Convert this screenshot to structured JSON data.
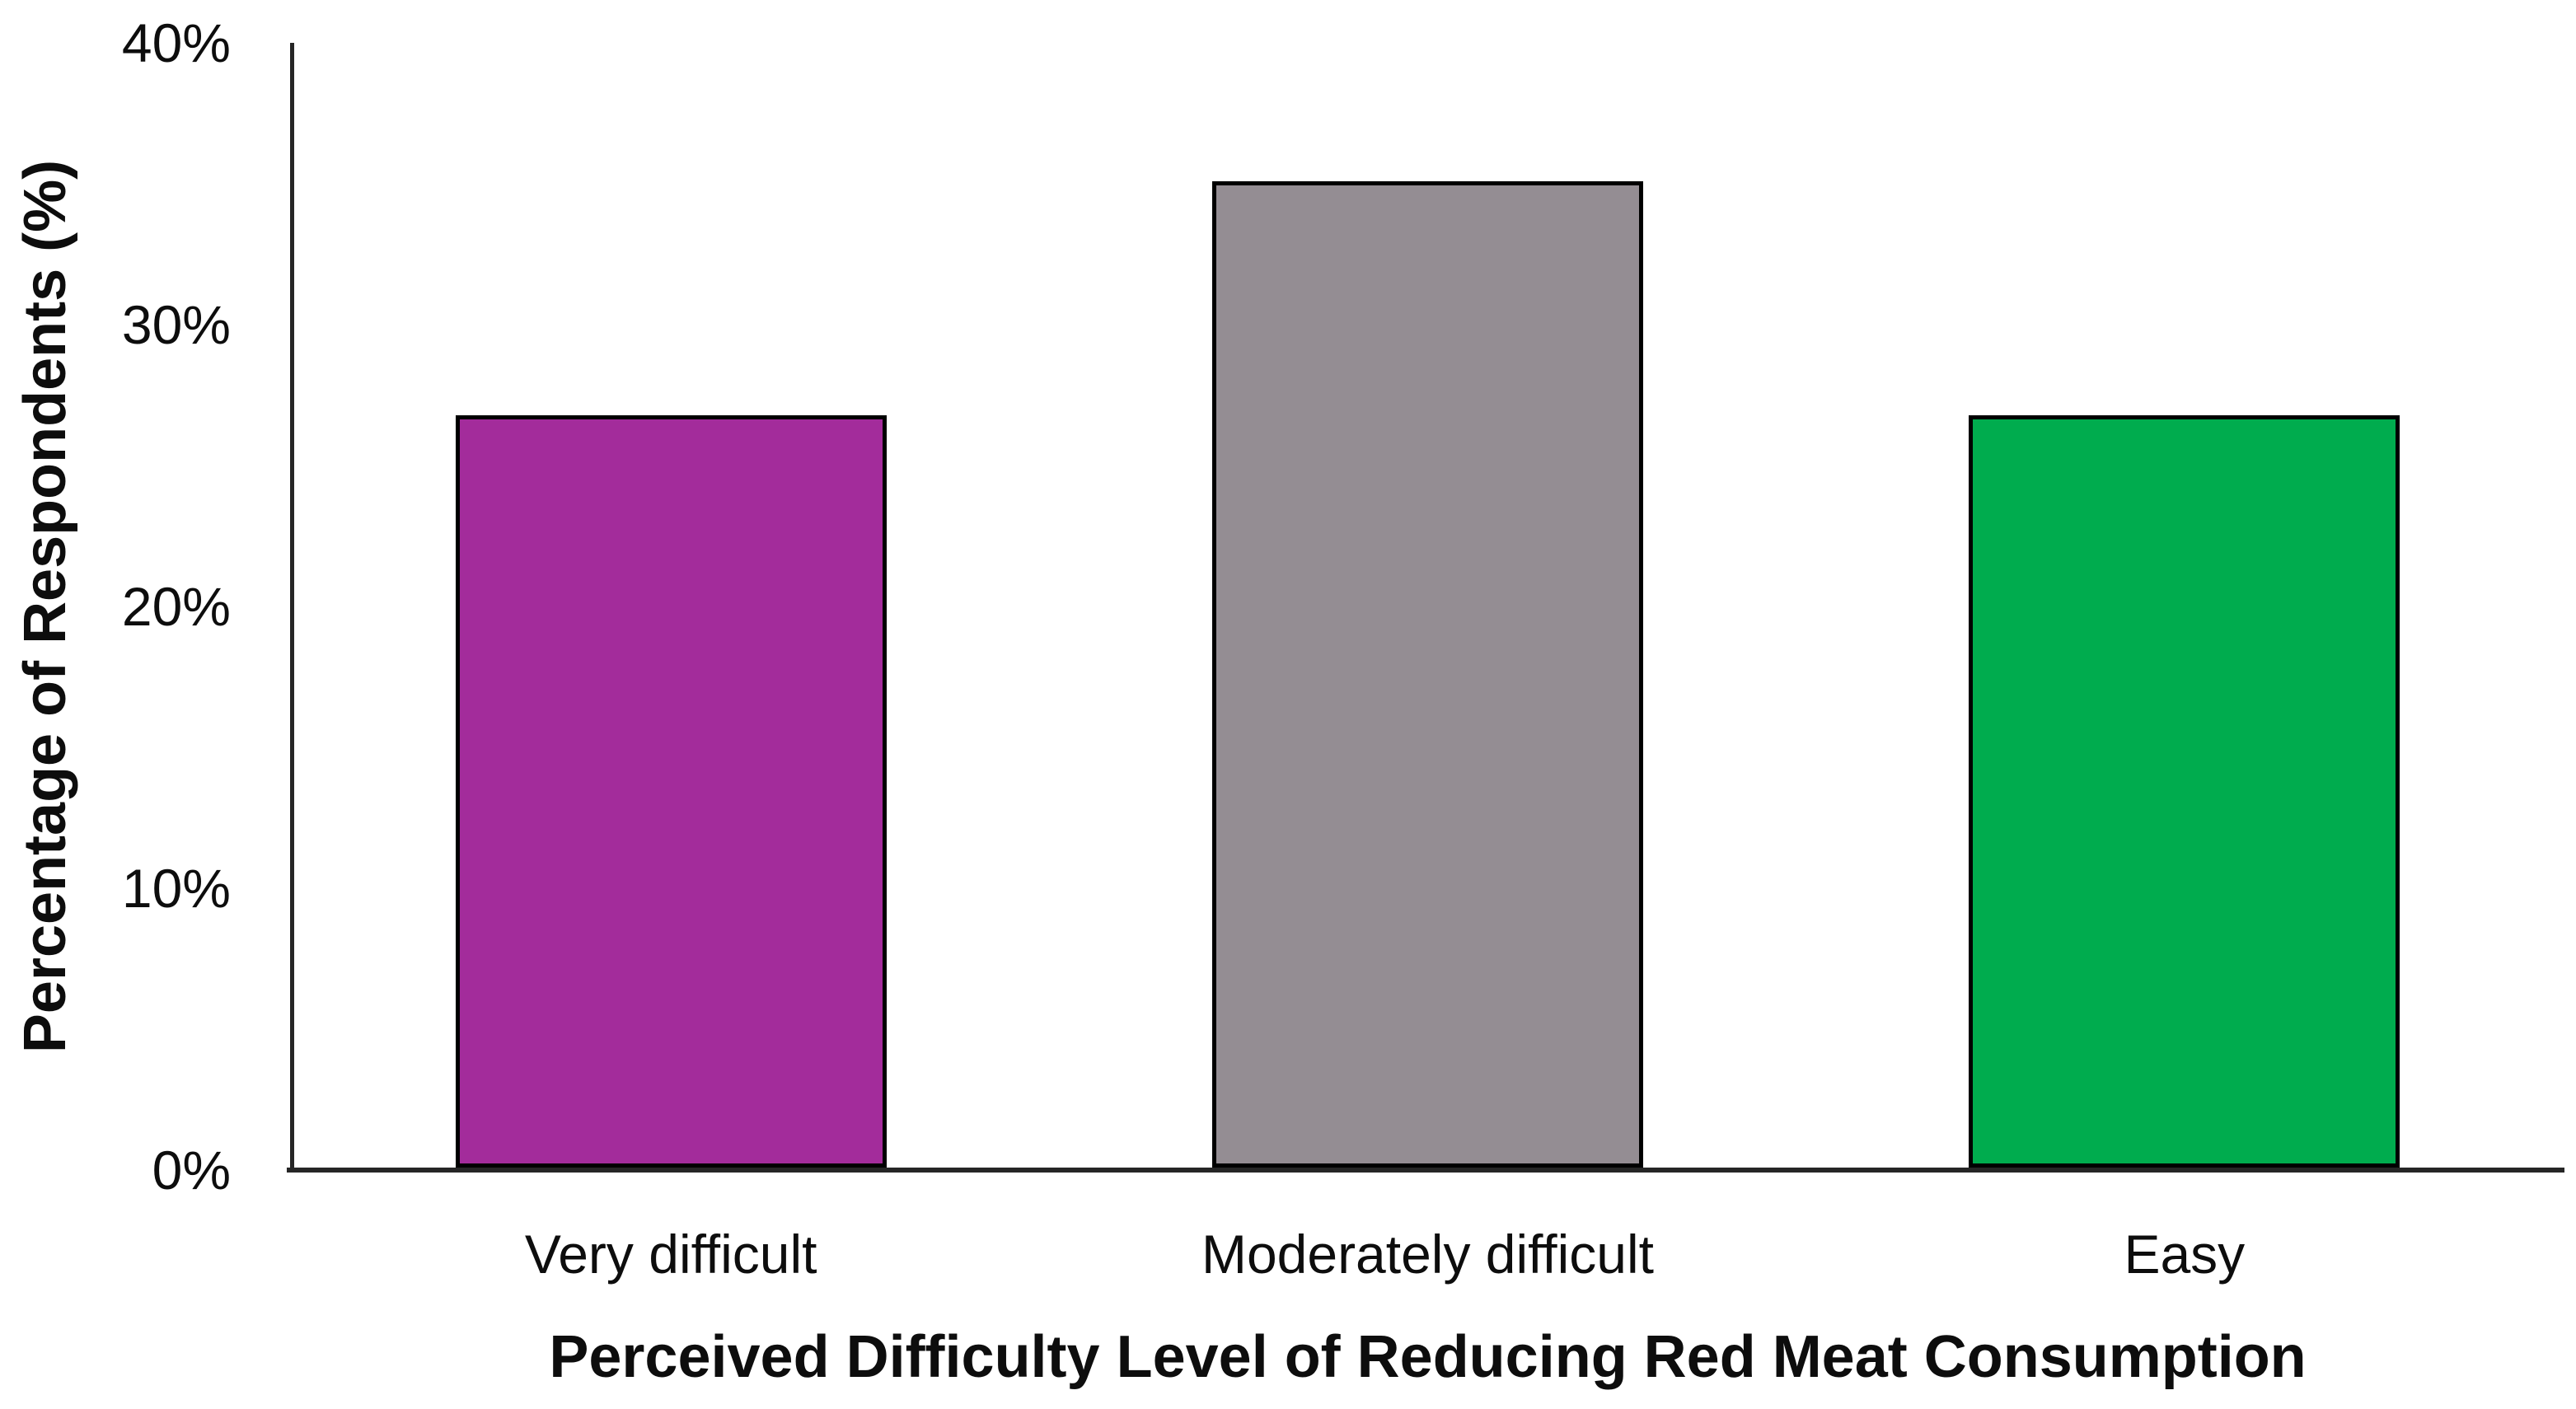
{
  "chart_data": {
    "type": "bar",
    "categories": [
      "Very difficult",
      "Moderately difficult",
      "Easy"
    ],
    "values": [
      26.7,
      35,
      26.7
    ],
    "bar_colors": [
      "#A32C9B",
      "#948D93",
      "#00AC4E"
    ],
    "xlabel": "Perceived Difficulty Level of Reducing Red Meat Consumption",
    "ylabel": "Percentage of Respondents (%)",
    "ylim": [
      0,
      40
    ],
    "yticks": [
      {
        "label": "0%",
        "value": 0
      },
      {
        "label": "10%",
        "value": 10
      },
      {
        "label": "20%",
        "value": 20
      },
      {
        "label": "30%",
        "value": 30
      },
      {
        "label": "40%",
        "value": 40
      }
    ],
    "grid": false,
    "legend": false,
    "bar_border_color": "#000000",
    "axis_color": "#262626",
    "text_color": "#0d0d0d"
  }
}
